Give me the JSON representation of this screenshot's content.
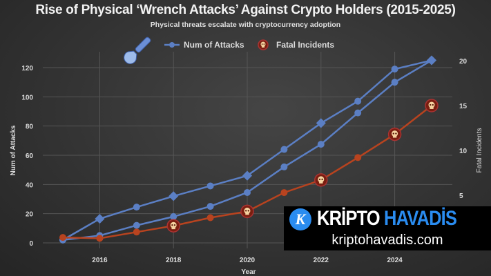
{
  "chart_data": {
    "type": "line",
    "title": "Rise of Physical ‘Wrench Attacks’ Against Crypto Holders (2015-2025)",
    "subtitle": "Physical threats escalate with cryptocurrency adoption",
    "xlabel": "Year",
    "ylabel": "Num of Attacks",
    "ylabel_right": "Fatal Incidents",
    "x": [
      2015,
      2016,
      2017,
      2018,
      2019,
      2020,
      2021,
      2022,
      2023,
      2024,
      2025
    ],
    "x_ticks": [
      "2016",
      "2018",
      "2020",
      "2022",
      "2024"
    ],
    "y_ticks": [
      "0",
      "20",
      "40",
      "60",
      "80",
      "100",
      "120"
    ],
    "y_right_ticks": [
      "5",
      "10",
      "15",
      "20"
    ],
    "ylim": [
      0,
      125
    ],
    "ylim_right": [
      0,
      20
    ],
    "grid": true,
    "legend_position": "top-center",
    "series": [
      {
        "name": "Num of Attacks",
        "axis": "left",
        "color": "#5b7fc4",
        "values": [
          2,
          16.5,
          24.5,
          32,
          39,
          46,
          64,
          82,
          97,
          119,
          125
        ]
      },
      {
        "axis": "left",
        "color": "#5b7fc4",
        "values": [
          2,
          5,
          12,
          18,
          25,
          34.5,
          52,
          67.5,
          89,
          110,
          125
        ]
      },
      {
        "name": "Fatal Incidents",
        "axis": "right",
        "color": "#b8431f",
        "values": [
          0.3,
          0.2,
          0.9,
          1.6,
          2.5,
          3.2,
          5.3,
          6.7,
          9.2,
          11.8,
          15
        ]
      }
    ],
    "icons": [
      "wrench-icon",
      "skull-icon"
    ]
  },
  "watermark": {
    "brand_a": "KRİPTO",
    "brand_b": "HAVADİS",
    "url": "kriptohavadis.com",
    "logo_letter": "K"
  }
}
